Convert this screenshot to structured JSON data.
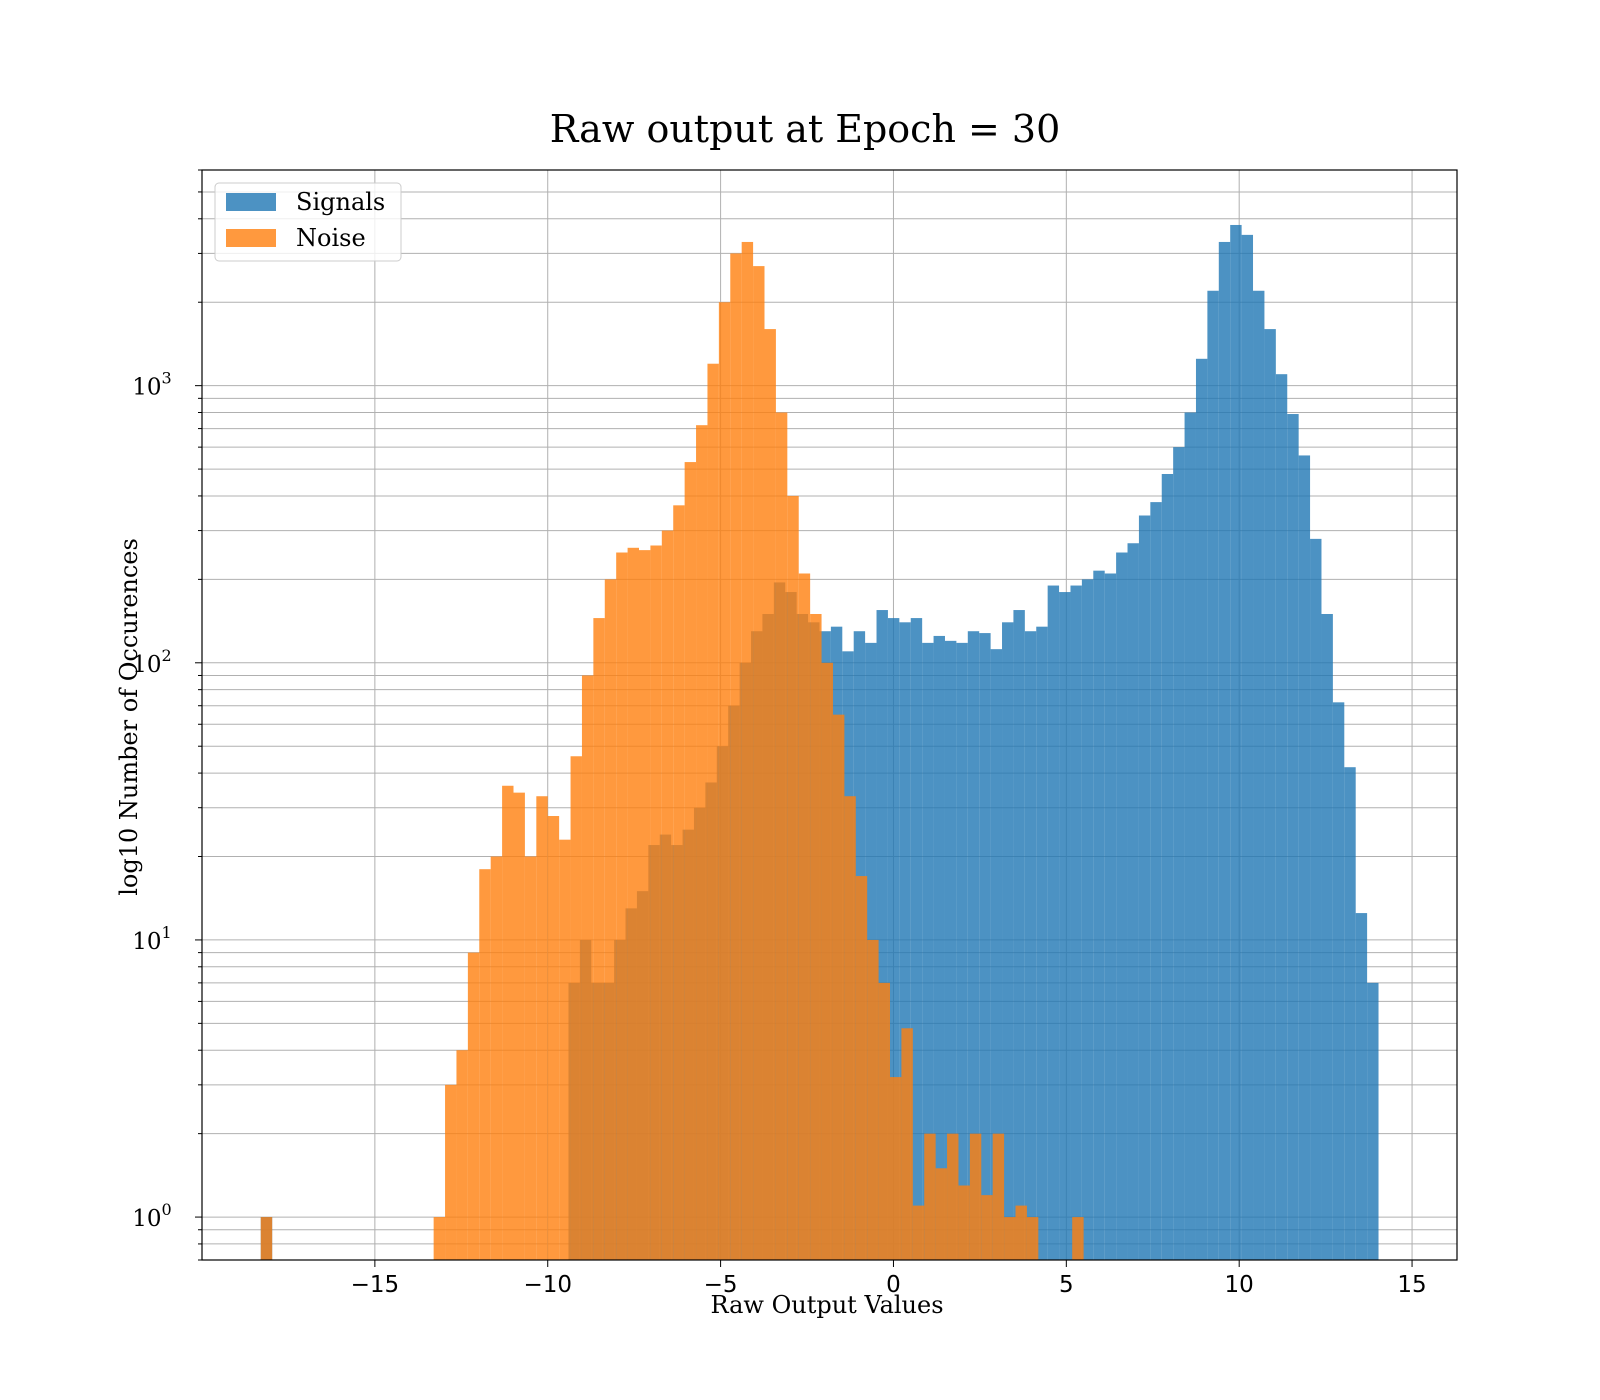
{
  "chart_data": {
    "type": "bar",
    "title": "Raw output at Epoch = 30",
    "xlabel": "Raw Output Values",
    "ylabel": "log10 Number of Occurences",
    "xlim": [
      -20.0,
      16.3
    ],
    "ylim": [
      0.7,
      6000
    ],
    "yscale": "log",
    "grid": true,
    "legend": "top-left",
    "x_ticks": [
      -15,
      -10,
      -5,
      0,
      5,
      10,
      15
    ],
    "x_tick_labels": [
      "−15",
      "−10",
      "−5",
      "0",
      "5",
      "10",
      "15"
    ],
    "y_ticks": [
      {
        "value": 1,
        "base": "10",
        "exp": "0"
      },
      {
        "value": 10,
        "base": "10",
        "exp": "1"
      },
      {
        "value": 100,
        "base": "10",
        "exp": "2"
      },
      {
        "value": 1000,
        "base": "10",
        "exp": "3"
      }
    ],
    "series": [
      {
        "name": "Signals",
        "color": "#1f77b4",
        "opacity": 0.8,
        "bin_width": 0.33,
        "bins": [
          [
            -18.3,
            1
          ],
          [
            -9.4,
            7
          ],
          [
            -9.07,
            10
          ],
          [
            -8.74,
            7
          ],
          [
            -8.41,
            7
          ],
          [
            -8.08,
            10
          ],
          [
            -7.75,
            13
          ],
          [
            -7.42,
            15
          ],
          [
            -7.09,
            22
          ],
          [
            -6.76,
            24
          ],
          [
            -6.43,
            22
          ],
          [
            -6.1,
            25
          ],
          [
            -5.77,
            30
          ],
          [
            -5.44,
            37
          ],
          [
            -5.11,
            50
          ],
          [
            -4.78,
            70
          ],
          [
            -4.45,
            100
          ],
          [
            -4.12,
            130
          ],
          [
            -3.79,
            150
          ],
          [
            -3.46,
            195
          ],
          [
            -3.13,
            180
          ],
          [
            -2.8,
            150
          ],
          [
            -2.47,
            140
          ],
          [
            -2.14,
            130
          ],
          [
            -1.81,
            135
          ],
          [
            -1.48,
            110
          ],
          [
            -1.15,
            130
          ],
          [
            -0.82,
            118
          ],
          [
            -0.49,
            155
          ],
          [
            -0.16,
            145
          ],
          [
            0.17,
            140
          ],
          [
            0.5,
            145
          ],
          [
            0.83,
            118
          ],
          [
            1.16,
            125
          ],
          [
            1.49,
            120
          ],
          [
            1.82,
            118
          ],
          [
            2.15,
            130
          ],
          [
            2.48,
            128
          ],
          [
            2.81,
            112
          ],
          [
            3.14,
            140
          ],
          [
            3.47,
            155
          ],
          [
            3.8,
            130
          ],
          [
            4.13,
            135
          ],
          [
            4.46,
            190
          ],
          [
            4.79,
            180
          ],
          [
            5.12,
            190
          ],
          [
            5.45,
            200
          ],
          [
            5.78,
            215
          ],
          [
            6.11,
            210
          ],
          [
            6.44,
            250
          ],
          [
            6.77,
            270
          ],
          [
            7.1,
            340
          ],
          [
            7.43,
            380
          ],
          [
            7.76,
            480
          ],
          [
            8.09,
            600
          ],
          [
            8.42,
            800
          ],
          [
            8.75,
            1250
          ],
          [
            9.08,
            2200
          ],
          [
            9.41,
            3300
          ],
          [
            9.74,
            3800
          ],
          [
            10.07,
            3500
          ],
          [
            10.4,
            2200
          ],
          [
            10.73,
            1600
          ],
          [
            11.06,
            1100
          ],
          [
            11.39,
            790
          ],
          [
            11.72,
            560
          ],
          [
            12.05,
            280
          ],
          [
            12.38,
            150
          ],
          [
            12.71,
            72
          ],
          [
            13.04,
            42
          ],
          [
            13.37,
            12.5
          ],
          [
            13.7,
            7
          ]
        ]
      },
      {
        "name": "Noise",
        "color": "#ff7f0e",
        "opacity": 0.8,
        "bin_width": 0.33,
        "bins": [
          [
            -18.3,
            1
          ],
          [
            -13.3,
            1
          ],
          [
            -12.97,
            3
          ],
          [
            -12.64,
            4
          ],
          [
            -12.31,
            9
          ],
          [
            -11.98,
            18
          ],
          [
            -11.65,
            20
          ],
          [
            -11.32,
            36
          ],
          [
            -10.99,
            34
          ],
          [
            -10.66,
            20
          ],
          [
            -10.33,
            33
          ],
          [
            -10.0,
            28
          ],
          [
            -9.67,
            23
          ],
          [
            -9.34,
            46
          ],
          [
            -9.01,
            90
          ],
          [
            -8.68,
            145
          ],
          [
            -8.35,
            200
          ],
          [
            -8.02,
            250
          ],
          [
            -7.69,
            260
          ],
          [
            -7.36,
            255
          ],
          [
            -7.03,
            265
          ],
          [
            -6.7,
            300
          ],
          [
            -6.37,
            370
          ],
          [
            -6.04,
            530
          ],
          [
            -5.71,
            720
          ],
          [
            -5.38,
            1200
          ],
          [
            -5.05,
            2000
          ],
          [
            -4.72,
            3000
          ],
          [
            -4.39,
            3300
          ],
          [
            -4.06,
            2700
          ],
          [
            -3.73,
            1600
          ],
          [
            -3.4,
            800
          ],
          [
            -3.07,
            400
          ],
          [
            -2.74,
            210
          ],
          [
            -2.41,
            150
          ],
          [
            -2.08,
            100
          ],
          [
            -1.75,
            65
          ],
          [
            -1.42,
            33
          ],
          [
            -1.09,
            17
          ],
          [
            -0.76,
            10
          ],
          [
            -0.43,
            7
          ],
          [
            -0.1,
            3.2
          ],
          [
            0.23,
            4.8
          ],
          [
            0.56,
            1.1
          ],
          [
            0.89,
            2
          ],
          [
            1.22,
            1.5
          ],
          [
            1.55,
            2
          ],
          [
            1.88,
            1.3
          ],
          [
            2.21,
            2
          ],
          [
            2.54,
            1.2
          ],
          [
            2.87,
            2
          ],
          [
            3.2,
            1
          ],
          [
            3.53,
            1.1
          ],
          [
            3.86,
            1
          ],
          [
            5.17,
            1
          ]
        ]
      }
    ]
  }
}
